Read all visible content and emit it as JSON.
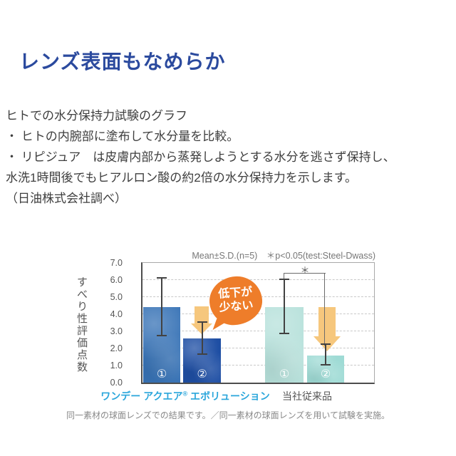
{
  "page": {
    "title": "レンズ表面もなめらか",
    "title_color": "#2b4a9e"
  },
  "body": {
    "lines": [
      "ヒトでの水分保持力試験のグラフ",
      "・ ヒトの内腕部に塗布して水分量を比較。",
      "・ リピジュア　は皮膚内部から蒸発しようとする水分を逃さず保持し、",
      "水洗1時間後でもヒアルロン酸の約2倍の水分保持力を示します。",
      "（日油株式会社調べ）"
    ]
  },
  "x_axis": {
    "group1_brand": "ワンデー アクエア",
    "group1_reg": "®",
    "group1_rest": " エボリューション",
    "group2": "当社従来品"
  },
  "chart_data": {
    "type": "bar",
    "note": "Mean±S.D.(n=5)　＊p<0.05(test:Steel-Dwass)",
    "ylabel": "すべり性評価点数",
    "ylim": [
      0.0,
      7.0
    ],
    "ytick_step": 1.0,
    "grid": "horizontal-dashed",
    "categories": [
      "①",
      "②"
    ],
    "series": [
      {
        "name": "ワンデー アクエア® エボリューション",
        "values": [
          4.4,
          2.6
        ],
        "error_low": [
          2.8,
          1.7
        ],
        "error_high": [
          6.1,
          3.5
        ],
        "colors": [
          "#3873b6",
          "#1f4fa4"
        ],
        "label_color": "#2aa6db"
      },
      {
        "name": "当社従来品",
        "values": [
          4.4,
          1.6
        ],
        "error_low": [
          2.9,
          1.1
        ],
        "error_high": [
          6.0,
          2.2
        ],
        "colors": [
          "#b7e1db",
          "#9fdbd5"
        ],
        "label_color": "#555555"
      }
    ],
    "significance": {
      "symbol": "＊",
      "between": "当社従来品 ① と ②",
      "p": "p<0.05"
    },
    "annotation": {
      "line1": "低下が",
      "line2": "少ない",
      "bubble_color": "#ee7d2a",
      "arrow_color": "#f6c77d"
    },
    "footnote": "同一素材の球面レンズでの結果です。／同一素材の球面レンズを用いて試験を実施。"
  }
}
